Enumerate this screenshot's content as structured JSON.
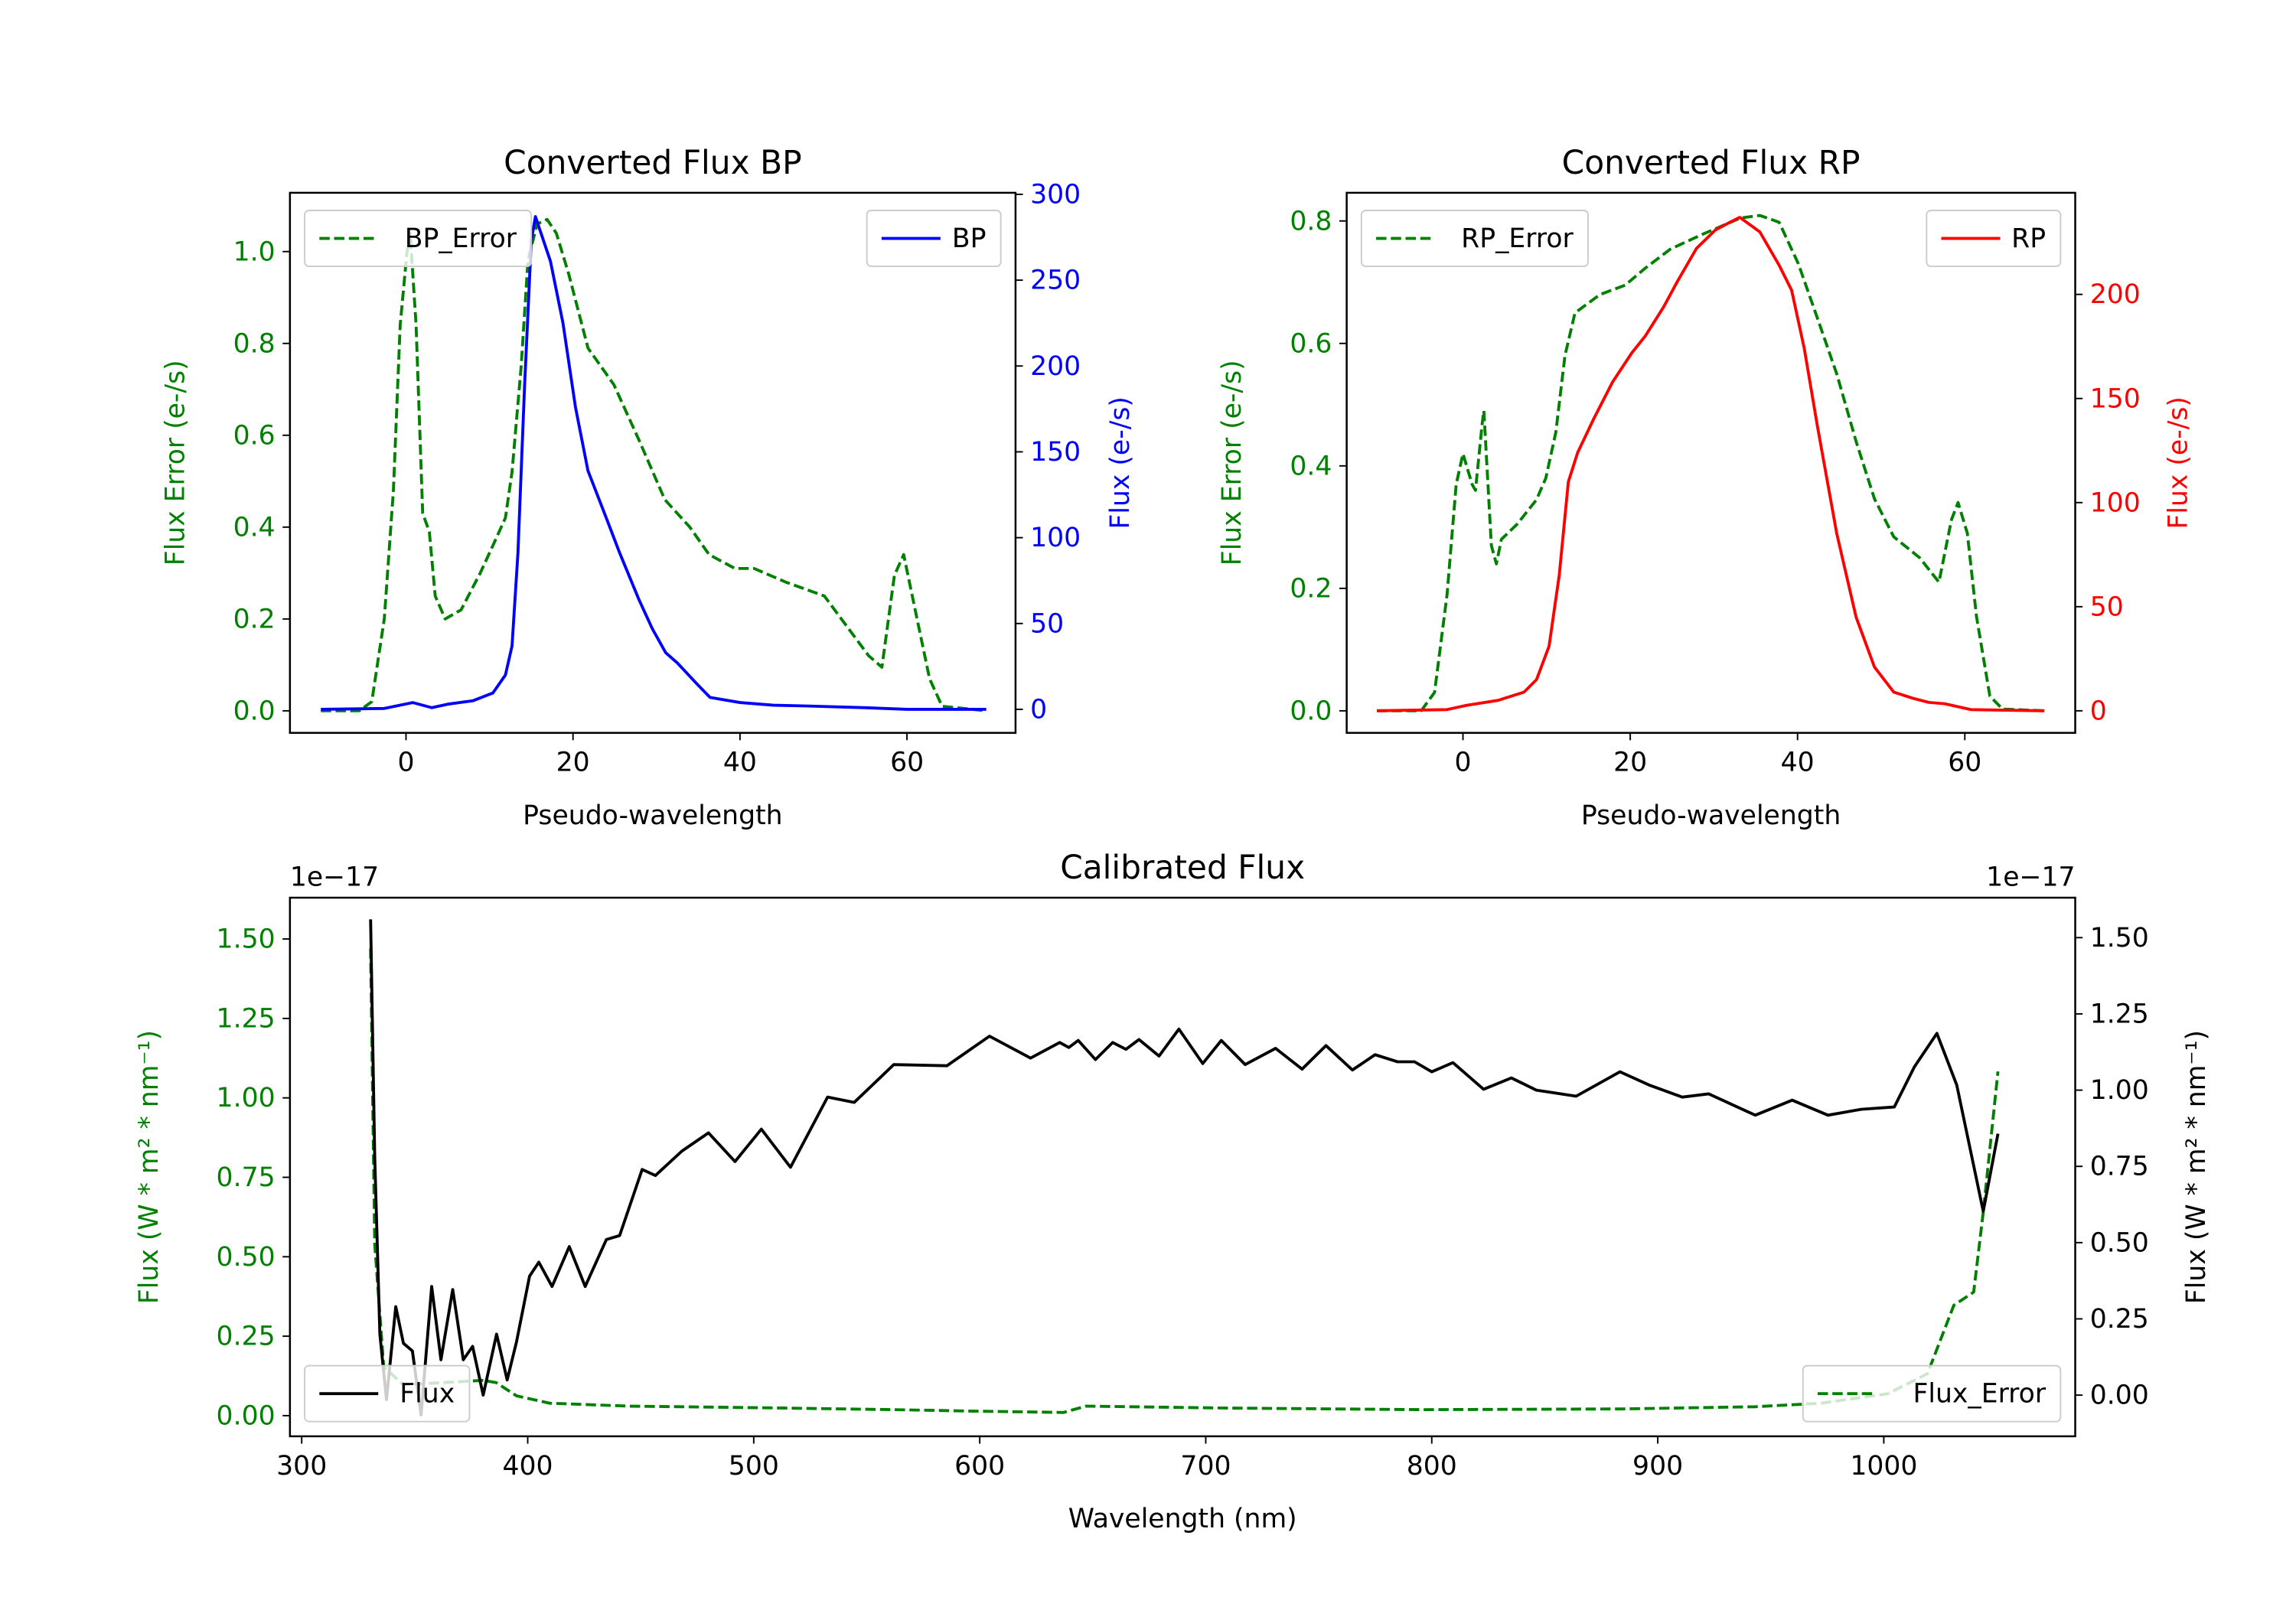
{
  "chart_data": [
    {
      "type": "line",
      "title": "Converted Flux BP",
      "xlabel": "Pseudo-wavelength",
      "ylabel_left": "Flux Error (e-/s)",
      "ylabel_right": "Flux (e-/s)",
      "color_left": "#008000",
      "color_right": "#0000ff",
      "xlim": [
        -13.9,
        73.0
      ],
      "ylim_left": [
        -0.048,
        1.128
      ],
      "ylim_right": [
        -13.7,
        300.9
      ],
      "xticks": [
        0,
        20,
        40,
        60
      ],
      "xtick_labels": [
        "0",
        "20",
        "40",
        "60"
      ],
      "yticks_left": [
        0,
        0.2,
        0.4,
        0.6,
        0.8,
        1.0
      ],
      "ytick_labels_left": [
        "0.0",
        "0.2",
        "0.4",
        "0.6",
        "0.8",
        "1.0"
      ],
      "yticks_right": [
        0,
        50,
        100,
        150,
        200,
        250,
        300
      ],
      "ytick_labels_right": [
        "0",
        "50",
        "100",
        "150",
        "200",
        "250",
        "300"
      ],
      "offset_left": "",
      "offset_right": "",
      "legends": [
        {
          "label": "BP_Error",
          "color": "#008000",
          "style": "dashed",
          "placement": "upper left"
        },
        {
          "label": "BP",
          "color": "#0000ff",
          "style": "solid",
          "placement": "upper right"
        }
      ],
      "series": [
        {
          "name": "BP_Error",
          "axis": "left",
          "color": "#008000",
          "style": "dashed",
          "x": [
            -10.2,
            -5.6,
            -4.1,
            -2.6,
            -1.5,
            -0.7,
            0.1,
            0.5,
            1.2,
            2,
            2.8,
            3.5,
            4.7,
            6.6,
            8.9,
            10.4,
            11.9,
            12.7,
            13.8,
            14.6,
            15.7,
            16.9,
            18,
            19.5,
            21.8,
            24.9,
            27.9,
            31,
            34,
            36.3,
            39.4,
            41.7,
            45.5,
            50.1,
            55.4,
            57,
            58.5,
            59.6,
            61.2,
            62.7,
            64.2,
            69.5
          ],
          "y": [
            0,
            0,
            0.02,
            0.2,
            0.48,
            0.84,
            0.995,
            1.04,
            0.84,
            0.43,
            0.39,
            0.25,
            0.2,
            0.22,
            0.3,
            0.36,
            0.42,
            0.52,
            0.75,
            0.98,
            1.06,
            1.07,
            1.04,
            0.95,
            0.79,
            0.71,
            0.59,
            0.46,
            0.4,
            0.34,
            0.31,
            0.31,
            0.28,
            0.25,
            0.12,
            0.095,
            0.295,
            0.34,
            0.2,
            0.07,
            0.01,
            0
          ]
        },
        {
          "name": "BP",
          "axis": "right",
          "color": "#0000ff",
          "style": "solid",
          "x": [
            -10.2,
            -2.6,
            0.8,
            3.1,
            5,
            8,
            10.4,
            11.9,
            12.7,
            13.4,
            14.2,
            15,
            15.5,
            17.3,
            18.8,
            20.3,
            21.8,
            24.1,
            25.6,
            27.9,
            29.5,
            31.1,
            32.5,
            34.8,
            36.4,
            40,
            44,
            47.8,
            55,
            60,
            69.5
          ],
          "y": [
            0,
            0.5,
            4,
            1,
            3,
            5,
            9.5,
            20,
            37,
            91,
            188,
            273,
            287,
            261,
            225,
            176,
            139,
            110,
            91,
            64,
            47,
            33,
            27,
            15,
            7,
            4,
            2.4,
            2,
            1,
            0,
            0
          ]
        }
      ]
    },
    {
      "type": "line",
      "title": "Converted Flux RP",
      "xlabel": "Pseudo-wavelength",
      "ylabel_left": "Flux Error (e-/s)",
      "ylabel_right": "Flux (e-/s)",
      "color_left": "#008000",
      "color_right": "#ff0000",
      "xlim": [
        -13.9,
        73.2
      ],
      "ylim_left": [
        -0.036,
        0.846
      ],
      "ylim_right": [
        -10.6,
        248.8
      ],
      "xticks": [
        0,
        20,
        40,
        60
      ],
      "xtick_labels": [
        "0",
        "20",
        "40",
        "60"
      ],
      "yticks_left": [
        0,
        0.2,
        0.4,
        0.6,
        0.8
      ],
      "ytick_labels_left": [
        "0.0",
        "0.2",
        "0.4",
        "0.6",
        "0.8"
      ],
      "yticks_right": [
        0,
        50,
        100,
        150,
        200
      ],
      "ytick_labels_right": [
        "0",
        "50",
        "100",
        "150",
        "200"
      ],
      "offset_left": "",
      "offset_right": "",
      "legends": [
        {
          "label": "RP_Error",
          "color": "#008000",
          "style": "dashed",
          "placement": "upper left"
        },
        {
          "label": "RP",
          "color": "#ff0000",
          "style": "solid",
          "placement": "upper right"
        }
      ],
      "series": [
        {
          "name": "RP_Error",
          "axis": "left",
          "color": "#008000",
          "style": "dashed",
          "x": [
            -10.3,
            -5,
            -3.4,
            -1.9,
            -0.8,
            0,
            1.1,
            1.5,
            2.3,
            2.5,
            3.4,
            4,
            4.6,
            6.5,
            8.8,
            9.9,
            11.1,
            12.2,
            13.4,
            16.4,
            19.4,
            21.8,
            24.8,
            28.6,
            33.2,
            35.5,
            37.8,
            40.1,
            42.4,
            44.7,
            47,
            49.2,
            51.5,
            54.6,
            56.9,
            58.4,
            59.2,
            60.3,
            61.4,
            63,
            64.5,
            69.5
          ],
          "y": [
            0,
            0,
            0.03,
            0.19,
            0.37,
            0.42,
            0.37,
            0.36,
            0.47,
            0.49,
            0.27,
            0.24,
            0.28,
            0.305,
            0.345,
            0.38,
            0.455,
            0.58,
            0.65,
            0.68,
            0.695,
            0.723,
            0.754,
            0.778,
            0.805,
            0.809,
            0.798,
            0.73,
            0.64,
            0.55,
            0.44,
            0.346,
            0.284,
            0.25,
            0.21,
            0.312,
            0.34,
            0.29,
            0.154,
            0.024,
            0.003,
            0
          ]
        },
        {
          "name": "RP",
          "axis": "right",
          "color": "#ff0000",
          "style": "solid",
          "x": [
            -10.3,
            -1.9,
            0.4,
            4.2,
            7.3,
            8.8,
            10.3,
            11.5,
            12.6,
            13.7,
            15.6,
            17.9,
            20.2,
            21.8,
            24,
            25.6,
            27.9,
            30.2,
            32.1,
            33.1,
            35.5,
            37.8,
            39.3,
            40.8,
            42.4,
            44.7,
            47,
            49.2,
            51.5,
            53.8,
            55.7,
            57.6,
            60.7,
            69.5
          ],
          "y": [
            0,
            0.6,
            2.6,
            5,
            9,
            15,
            31,
            65,
            110,
            124,
            140,
            158,
            172,
            180,
            194,
            206,
            222,
            231,
            235,
            237,
            230,
            214,
            202,
            174,
            136,
            85,
            45,
            21,
            9,
            6,
            4,
            3.4,
            0.6,
            0
          ]
        }
      ]
    },
    {
      "type": "line",
      "title": "Calibrated Flux",
      "xlabel": "Wavelength (nm)",
      "ylabel_left": "Flux (W * m² * nm⁻¹)",
      "ylabel_right": "Flux (W * m² * nm⁻¹)",
      "color_left": "#008000",
      "color_right": "#000000",
      "xlim": [
        294.8,
        1084.7
      ],
      "ylim_left": [
        -0.065,
        1.63
      ],
      "ylim_right": [
        -0.135,
        1.631
      ],
      "xticks": [
        300,
        400,
        500,
        600,
        700,
        800,
        900,
        1000
      ],
      "xtick_labels": [
        "300",
        "400",
        "500",
        "600",
        "700",
        "800",
        "900",
        "1000"
      ],
      "yticks_left": [
        0,
        0.25,
        0.5,
        0.75,
        1.0,
        1.25,
        1.5
      ],
      "ytick_labels_left": [
        "0.00",
        "0.25",
        "0.50",
        "0.75",
        "1.00",
        "1.25",
        "1.50"
      ],
      "yticks_right": [
        0,
        0.25,
        0.5,
        0.75,
        1.0,
        1.25,
        1.5
      ],
      "ytick_labels_right": [
        "0.00",
        "0.25",
        "0.50",
        "0.75",
        "1.00",
        "1.25",
        "1.50"
      ],
      "offset_left": "1e−17",
      "offset_right": "1e−17",
      "legends": [
        {
          "label": "Flux",
          "color": "#000000",
          "style": "solid",
          "placement": "lower left"
        },
        {
          "label": "Flux_Error",
          "color": "#008000",
          "style": "dashed",
          "placement": "lower right"
        }
      ],
      "series": [
        {
          "name": "Flux_Error",
          "axis": "left",
          "color": "#008000",
          "style": "dashed",
          "x": [
            330.5,
            332.3,
            336.3,
            345,
            362.7,
            380.3,
            386,
            395,
            409.6,
            444.8,
            503.4,
            562,
            597.2,
            637.1,
            647,
            708.6,
            796.5,
            884.5,
            943.1,
            972.4,
            1001.7,
            1019.3,
            1031,
            1039.8,
            1044,
            1050.5
          ],
          "y": [
            1.47,
            0.54,
            0.153,
            0.097,
            0.104,
            0.111,
            0.104,
            0.0625,
            0.039,
            0.03,
            0.025,
            0.019,
            0.014,
            0.01,
            0.03,
            0.024,
            0.019,
            0.021,
            0.028,
            0.039,
            0.069,
            0.132,
            0.347,
            0.389,
            0.64,
            1.083
          ]
        },
        {
          "name": "Flux",
          "axis": "right",
          "color": "#000000",
          "style": "solid",
          "x": [
            330.5,
            332.3,
            334.6,
            337.5,
            341.6,
            345,
            349,
            352.8,
            357.5,
            361.6,
            366.8,
            371.5,
            375.6,
            380.3,
            386.2,
            390.9,
            395,
            400.8,
            404.9,
            410.8,
            418.4,
            425.4,
            434.8,
            440.7,
            450.6,
            456.5,
            468.2,
            480,
            491.7,
            503.4,
            516.3,
            532.7,
            544.5,
            562,
            585.5,
            604.3,
            622.5,
            635.4,
            639.4,
            643.6,
            651.2,
            658.8,
            664.7,
            670.5,
            679.3,
            688.1,
            698.7,
            706.9,
            717.4,
            730.9,
            742.6,
            753.2,
            764.9,
            774.9,
            784.8,
            792.4,
            800,
            809.4,
            822.9,
            835.2,
            846.3,
            863.9,
            883.3,
            896.2,
            910.8,
            922.5,
            943.1,
            959.5,
            975.3,
            990,
            1004.7,
            1013.5,
            1023.5,
            1032.3,
            1044,
            1050.5
          ],
          "y": [
            1.56,
            0.78,
            0.2,
            -0.015,
            0.29,
            0.17,
            0.145,
            -0.065,
            0.356,
            0.116,
            0.346,
            0.116,
            0.16,
            0,
            0.2,
            0.05,
            0.174,
            0.39,
            0.436,
            0.356,
            0.487,
            0.356,
            0.51,
            0.523,
            0.74,
            0.72,
            0.8,
            0.86,
            0.766,
            0.872,
            0.747,
            0.977,
            0.96,
            1.084,
            1.08,
            1.177,
            1.105,
            1.156,
            1.14,
            1.163,
            1.1,
            1.156,
            1.134,
            1.166,
            1.112,
            1.2,
            1.087,
            1.163,
            1.084,
            1.137,
            1.069,
            1.146,
            1.066,
            1.116,
            1.093,
            1.093,
            1.06,
            1.09,
            1.003,
            1.04,
            1.0,
            0.98,
            1.06,
            1.017,
            0.977,
            0.988,
            0.918,
            0.967,
            0.918,
            0.937,
            0.945,
            1.076,
            1.186,
            1.017,
            0.603,
            0.857
          ]
        }
      ]
    }
  ]
}
